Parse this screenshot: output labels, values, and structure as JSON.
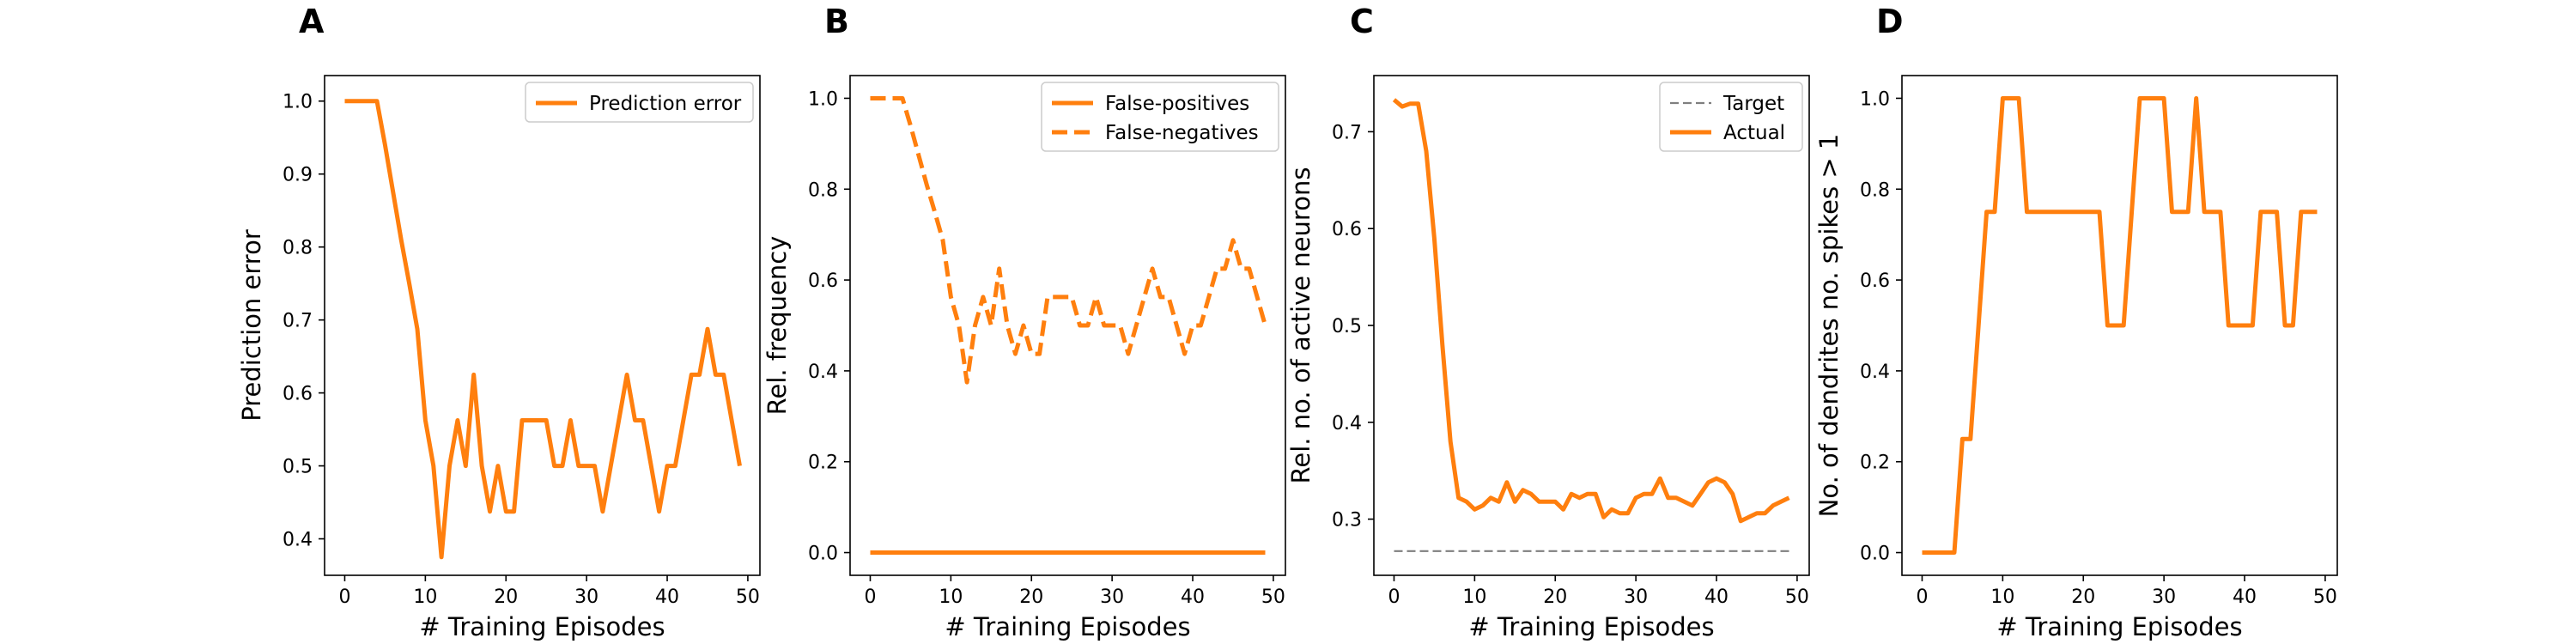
{
  "chart_data": [
    {
      "panel": "A",
      "type": "line",
      "xlabel": "# Training Episodes",
      "ylabel": "Prediction error",
      "xlim": [
        -2.5,
        51.5
      ],
      "ylim": [
        0.35,
        1.035
      ],
      "xticks": [
        0,
        10,
        20,
        30,
        40,
        50
      ],
      "yticks": [
        0.4,
        0.5,
        0.6,
        0.7,
        0.8,
        0.9,
        1.0
      ],
      "ytick_labels": [
        "0.4",
        "0.5",
        "0.6",
        "0.7",
        "0.8",
        "0.9",
        "1.0"
      ],
      "legend_position": "top-right",
      "grid": false,
      "x": [
        0,
        1,
        2,
        3,
        4,
        5,
        6,
        7,
        8,
        9,
        10,
        11,
        12,
        13,
        14,
        15,
        16,
        17,
        18,
        19,
        20,
        21,
        22,
        23,
        24,
        25,
        26,
        27,
        28,
        29,
        30,
        31,
        32,
        33,
        34,
        35,
        36,
        37,
        38,
        39,
        40,
        41,
        42,
        43,
        44,
        45,
        46,
        47,
        48,
        49
      ],
      "series": [
        {
          "name": "Prediction error",
          "color": "#ff7f0e",
          "dash": "solid",
          "values": [
            1.0,
            1.0,
            1.0,
            1.0,
            1.0,
            0.94,
            0.875,
            0.81,
            0.75,
            0.6875,
            0.5625,
            0.5,
            0.375,
            0.5,
            0.5625,
            0.5,
            0.625,
            0.5,
            0.4375,
            0.5,
            0.4375,
            0.4375,
            0.5625,
            0.5625,
            0.5625,
            0.5625,
            0.5,
            0.5,
            0.5625,
            0.5,
            0.5,
            0.5,
            0.4375,
            0.5,
            0.5625,
            0.625,
            0.5625,
            0.5625,
            0.5,
            0.4375,
            0.5,
            0.5,
            0.5625,
            0.625,
            0.625,
            0.6875,
            0.625,
            0.625,
            0.5625,
            0.5
          ]
        }
      ]
    },
    {
      "panel": "B",
      "type": "line",
      "xlabel": "# Training Episodes",
      "ylabel": "Rel. frequency",
      "xlim": [
        -2.5,
        51.5
      ],
      "ylim": [
        -0.05,
        1.05
      ],
      "xticks": [
        0,
        10,
        20,
        30,
        40,
        50
      ],
      "yticks": [
        0.0,
        0.2,
        0.4,
        0.6,
        0.8,
        1.0
      ],
      "ytick_labels": [
        "0.0",
        "0.2",
        "0.4",
        "0.6",
        "0.8",
        "1.0"
      ],
      "legend_position": "top-right",
      "grid": false,
      "x": [
        0,
        1,
        2,
        3,
        4,
        5,
        6,
        7,
        8,
        9,
        10,
        11,
        12,
        13,
        14,
        15,
        16,
        17,
        18,
        19,
        20,
        21,
        22,
        23,
        24,
        25,
        26,
        27,
        28,
        29,
        30,
        31,
        32,
        33,
        34,
        35,
        36,
        37,
        38,
        39,
        40,
        41,
        42,
        43,
        44,
        45,
        46,
        47,
        48,
        49
      ],
      "series": [
        {
          "name": "False-positives",
          "color": "#ff7f0e",
          "dash": "solid",
          "values": [
            0,
            0,
            0,
            0,
            0,
            0,
            0,
            0,
            0,
            0,
            0,
            0,
            0,
            0,
            0,
            0,
            0,
            0,
            0,
            0,
            0,
            0,
            0,
            0,
            0,
            0,
            0,
            0,
            0,
            0,
            0,
            0,
            0,
            0,
            0,
            0,
            0,
            0,
            0,
            0,
            0,
            0,
            0,
            0,
            0,
            0,
            0,
            0,
            0,
            0
          ]
        },
        {
          "name": "False-negatives",
          "color": "#ff7f0e",
          "dash": "dashed",
          "values": [
            1.0,
            1.0,
            1.0,
            1.0,
            1.0,
            0.94,
            0.875,
            0.81,
            0.75,
            0.6875,
            0.5625,
            0.5,
            0.375,
            0.5,
            0.5625,
            0.5,
            0.625,
            0.5,
            0.4375,
            0.5,
            0.4375,
            0.4375,
            0.5625,
            0.5625,
            0.5625,
            0.5625,
            0.5,
            0.5,
            0.5625,
            0.5,
            0.5,
            0.5,
            0.4375,
            0.5,
            0.5625,
            0.625,
            0.5625,
            0.5625,
            0.5,
            0.4375,
            0.5,
            0.5,
            0.5625,
            0.625,
            0.625,
            0.6875,
            0.625,
            0.625,
            0.5625,
            0.5
          ]
        }
      ]
    },
    {
      "panel": "C",
      "type": "line",
      "xlabel": "# Training Episodes",
      "ylabel": "Rel. no. of active neurons",
      "xlim": [
        -2.5,
        51.5
      ],
      "ylim": [
        0.242,
        0.758
      ],
      "xticks": [
        0,
        10,
        20,
        30,
        40,
        50
      ],
      "yticks": [
        0.3,
        0.4,
        0.5,
        0.6,
        0.7
      ],
      "ytick_labels": [
        "0.3",
        "0.4",
        "0.5",
        "0.6",
        "0.7"
      ],
      "legend_position": "top-right",
      "grid": false,
      "x": [
        0,
        1,
        2,
        3,
        4,
        5,
        6,
        7,
        8,
        9,
        10,
        11,
        12,
        13,
        14,
        15,
        16,
        17,
        18,
        19,
        20,
        21,
        22,
        23,
        24,
        25,
        26,
        27,
        28,
        29,
        30,
        31,
        32,
        33,
        34,
        35,
        36,
        37,
        38,
        39,
        40,
        41,
        42,
        43,
        44,
        45,
        46,
        47,
        48,
        49
      ],
      "series": [
        {
          "name": "Target",
          "color": "#7f7f7f",
          "dash": "dashed",
          "values": [
            0.267,
            0.267,
            0.267,
            0.267,
            0.267,
            0.267,
            0.267,
            0.267,
            0.267,
            0.267,
            0.267,
            0.267,
            0.267,
            0.267,
            0.267,
            0.267,
            0.267,
            0.267,
            0.267,
            0.267,
            0.267,
            0.267,
            0.267,
            0.267,
            0.267,
            0.267,
            0.267,
            0.267,
            0.267,
            0.267,
            0.267,
            0.267,
            0.267,
            0.267,
            0.267,
            0.267,
            0.267,
            0.267,
            0.267,
            0.267,
            0.267,
            0.267,
            0.267,
            0.267,
            0.267,
            0.267,
            0.267,
            0.267,
            0.267,
            0.267
          ]
        },
        {
          "name": "Actual",
          "color": "#ff7f0e",
          "dash": "solid",
          "values": [
            0.733,
            0.726,
            0.729,
            0.729,
            0.68,
            0.59,
            0.48,
            0.38,
            0.322,
            0.318,
            0.31,
            0.314,
            0.322,
            0.318,
            0.338,
            0.318,
            0.33,
            0.326,
            0.318,
            0.318,
            0.318,
            0.31,
            0.326,
            0.322,
            0.326,
            0.326,
            0.302,
            0.31,
            0.306,
            0.306,
            0.322,
            0.326,
            0.326,
            0.342,
            0.322,
            0.322,
            0.318,
            0.314,
            0.326,
            0.338,
            0.342,
            0.338,
            0.326,
            0.298,
            0.302,
            0.306,
            0.306,
            0.314,
            0.318,
            0.322
          ]
        }
      ]
    },
    {
      "panel": "D",
      "type": "line",
      "xlabel": "# Training Episodes",
      "ylabel": "No. of dendrites no. spikes > 1",
      "xlim": [
        -2.5,
        51.5
      ],
      "ylim": [
        -0.05,
        1.05
      ],
      "xticks": [
        0,
        10,
        20,
        30,
        40,
        50
      ],
      "yticks": [
        0.0,
        0.2,
        0.4,
        0.6,
        0.8,
        1.0
      ],
      "ytick_labels": [
        "0.0",
        "0.2",
        "0.4",
        "0.6",
        "0.8",
        "1.0"
      ],
      "legend_position": "none",
      "grid": false,
      "x": [
        0,
        1,
        2,
        3,
        4,
        5,
        6,
        7,
        8,
        9,
        10,
        11,
        12,
        13,
        14,
        15,
        16,
        17,
        18,
        19,
        20,
        21,
        22,
        23,
        24,
        25,
        26,
        27,
        28,
        29,
        30,
        31,
        32,
        33,
        34,
        35,
        36,
        37,
        38,
        39,
        40,
        41,
        42,
        43,
        44,
        45,
        46,
        47,
        48,
        49
      ],
      "series": [
        {
          "name": "",
          "color": "#ff7f0e",
          "dash": "solid",
          "values": [
            0,
            0,
            0,
            0,
            0,
            0.25,
            0.25,
            0.5,
            0.75,
            0.75,
            1.0,
            1.0,
            1.0,
            0.75,
            0.75,
            0.75,
            0.75,
            0.75,
            0.75,
            0.75,
            0.75,
            0.75,
            0.75,
            0.5,
            0.5,
            0.5,
            0.75,
            1.0,
            1.0,
            1.0,
            1.0,
            0.75,
            0.75,
            0.75,
            1.0,
            0.75,
            0.75,
            0.75,
            0.5,
            0.5,
            0.5,
            0.5,
            0.75,
            0.75,
            0.75,
            0.5,
            0.5,
            0.75,
            0.75,
            0.75
          ]
        }
      ]
    }
  ]
}
